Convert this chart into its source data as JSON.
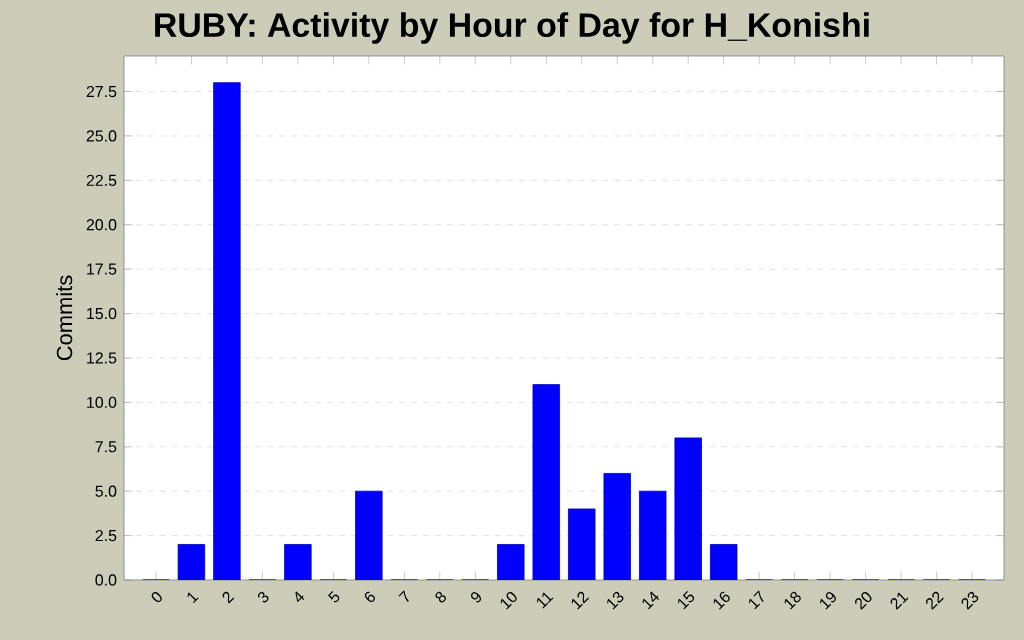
{
  "chart_data": {
    "type": "bar",
    "title": "RUBY: Activity by Hour of Day for H_Konishi",
    "ylabel": "Commits",
    "categories": [
      "0",
      "1",
      "2",
      "3",
      "4",
      "5",
      "6",
      "7",
      "8",
      "9",
      "10",
      "11",
      "12",
      "13",
      "14",
      "15",
      "16",
      "17",
      "18",
      "19",
      "20",
      "21",
      "22",
      "23"
    ],
    "values": [
      0,
      2,
      28,
      0,
      2,
      0,
      5,
      0,
      0,
      0,
      2,
      11,
      4,
      6,
      5,
      8,
      2,
      0,
      0,
      0,
      0,
      0,
      0,
      0
    ],
    "color": "#0000ff",
    "ylim": [
      0,
      29.5
    ],
    "yticks": [
      {
        "value": 0,
        "label": "0.0"
      },
      {
        "value": 2.5,
        "label": "2.5"
      },
      {
        "value": 5,
        "label": "5.0"
      },
      {
        "value": 7.5,
        "label": "7.5"
      },
      {
        "value": 10,
        "label": "10.0"
      },
      {
        "value": 12.5,
        "label": "12.5"
      },
      {
        "value": 15,
        "label": "15.0"
      },
      {
        "value": 17.5,
        "label": "17.5"
      },
      {
        "value": 20,
        "label": "20.0"
      },
      {
        "value": 22.5,
        "label": "22.5"
      },
      {
        "value": 25,
        "label": "25.0"
      },
      {
        "value": 27.5,
        "label": "27.5"
      }
    ],
    "grid": "y"
  }
}
